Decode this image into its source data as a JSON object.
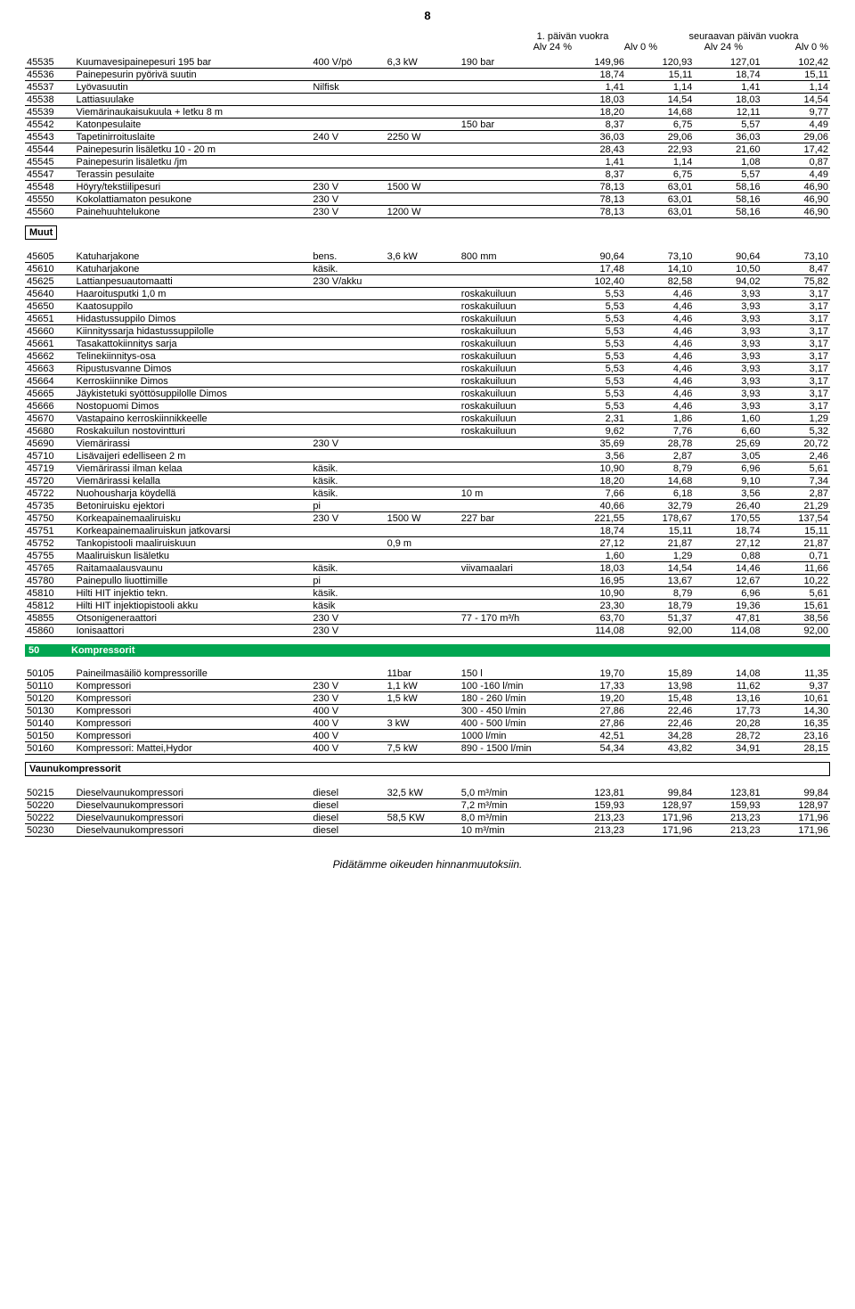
{
  "page_number": "8",
  "header": {
    "top_left": "1. päivän vuokra",
    "top_right": "seuraavan päivän vuokra",
    "cols": [
      "Alv 24 %",
      "Alv 0 %",
      "Alv 24 %",
      "Alv 0 %"
    ]
  },
  "group1": [
    {
      "code": "45535",
      "name": "Kuumavesipainepesuri 195 bar",
      "c3": "400 V/pö",
      "c4": "6,3 kW",
      "c5": "190 bar",
      "v": [
        "149,96",
        "120,93",
        "127,01",
        "102,42"
      ]
    },
    {
      "code": "45536",
      "name": "Painepesurin pyörivä suutin",
      "c3": "",
      "c4": "",
      "c5": "",
      "v": [
        "18,74",
        "15,11",
        "18,74",
        "15,11"
      ]
    },
    {
      "code": "45537",
      "name": "Lyövasuutin",
      "c3": "Nilfisk",
      "c4": "",
      "c5": "",
      "v": [
        "1,41",
        "1,14",
        "1,41",
        "1,14"
      ]
    },
    {
      "code": "45538",
      "name": "Lattiasuulake",
      "c3": "",
      "c4": "",
      "c5": "",
      "v": [
        "18,03",
        "14,54",
        "18,03",
        "14,54"
      ]
    },
    {
      "code": "45539",
      "name": "Viemärinaukaisukuula + letku 8 m",
      "c3": "",
      "c4": "",
      "c5": "",
      "v": [
        "18,20",
        "14,68",
        "12,11",
        "9,77"
      ]
    },
    {
      "code": "45542",
      "name": "Katonpesulaite",
      "c3": "",
      "c4": "",
      "c5": "150 bar",
      "v": [
        "8,37",
        "6,75",
        "5,57",
        "4,49"
      ]
    },
    {
      "code": "45543",
      "name": "Tapetinirroituslaite",
      "c3": "240 V",
      "c4": "2250 W",
      "c5": "",
      "v": [
        "36,03",
        "29,06",
        "36,03",
        "29,06"
      ]
    },
    {
      "code": "45544",
      "name": "Painepesurin lisäletku 10 - 20 m",
      "c3": "",
      "c4": "",
      "c5": "",
      "v": [
        "28,43",
        "22,93",
        "21,60",
        "17,42"
      ]
    },
    {
      "code": "45545",
      "name": "Painepesurin lisäletku /jm",
      "c3": "",
      "c4": "",
      "c5": "",
      "v": [
        "1,41",
        "1,14",
        "1,08",
        "0,87"
      ]
    },
    {
      "code": "45547",
      "name": "Terassin pesulaite",
      "c3": "",
      "c4": "",
      "c5": "",
      "v": [
        "8,37",
        "6,75",
        "5,57",
        "4,49"
      ]
    },
    {
      "code": "45548",
      "name": "Höyry/tekstiilipesuri",
      "c3": "230 V",
      "c4": "1500 W",
      "c5": "",
      "v": [
        "78,13",
        "63,01",
        "58,16",
        "46,90"
      ]
    },
    {
      "code": "45550",
      "name": "Kokolattiamaton pesukone",
      "c3": "230 V",
      "c4": "",
      "c5": "",
      "v": [
        "78,13",
        "63,01",
        "58,16",
        "46,90"
      ]
    },
    {
      "code": "45560",
      "name": "Painehuuhtelukone",
      "c3": "230 V",
      "c4": "1200 W",
      "c5": "",
      "v": [
        "78,13",
        "63,01",
        "58,16",
        "46,90"
      ]
    }
  ],
  "muut_label": "Muut",
  "muut": [
    {
      "code": "45605",
      "name": "Katuharjakone",
      "c3": "bens.",
      "c4": "3,6 kW",
      "c5": "800 mm",
      "v": [
        "90,64",
        "73,10",
        "90,64",
        "73,10"
      ]
    },
    {
      "code": "45610",
      "name": "Katuharjakone",
      "c3": "käsik.",
      "c4": "",
      "c5": "",
      "v": [
        "17,48",
        "14,10",
        "10,50",
        "8,47"
      ]
    },
    {
      "code": "45625",
      "name": "Lattianpesuautomaatti",
      "c3": "230 V/akku",
      "c4": "",
      "c5": "",
      "v": [
        "102,40",
        "82,58",
        "94,02",
        "75,82"
      ]
    },
    {
      "code": "45640",
      "name": "Haaroitusputki 1,0 m",
      "c3": "",
      "c4": "",
      "c5": "roskakuiluun",
      "v": [
        "5,53",
        "4,46",
        "3,93",
        "3,17"
      ]
    },
    {
      "code": "45650",
      "name": "Kaatosuppilo",
      "c3": "",
      "c4": "",
      "c5": "roskakuiluun",
      "v": [
        "5,53",
        "4,46",
        "3,93",
        "3,17"
      ]
    },
    {
      "code": "45651",
      "name": "Hidastussuppilo Dimos",
      "c3": "",
      "c4": "",
      "c5": "roskakuiluun",
      "v": [
        "5,53",
        "4,46",
        "3,93",
        "3,17"
      ]
    },
    {
      "code": "45660",
      "name": "Kiinnityssarja hidastussuppilolle",
      "c3": "",
      "c4": "",
      "c5": "roskakuiluun",
      "v": [
        "5,53",
        "4,46",
        "3,93",
        "3,17"
      ]
    },
    {
      "code": "45661",
      "name": "Tasakattokiinnitys sarja",
      "c3": "",
      "c4": "",
      "c5": "roskakuiluun",
      "v": [
        "5,53",
        "4,46",
        "3,93",
        "3,17"
      ]
    },
    {
      "code": "45662",
      "name": "Telinekiinnitys-osa",
      "c3": "",
      "c4": "",
      "c5": "roskakuiluun",
      "v": [
        "5,53",
        "4,46",
        "3,93",
        "3,17"
      ]
    },
    {
      "code": "45663",
      "name": "Ripustusvanne Dimos",
      "c3": "",
      "c4": "",
      "c5": "roskakuiluun",
      "v": [
        "5,53",
        "4,46",
        "3,93",
        "3,17"
      ]
    },
    {
      "code": "45664",
      "name": "Kerroskiinnike Dimos",
      "c3": "",
      "c4": "",
      "c5": "roskakuiluun",
      "v": [
        "5,53",
        "4,46",
        "3,93",
        "3,17"
      ]
    },
    {
      "code": "45665",
      "name": "Jäykistetuki syöttösuppilolle Dimos",
      "c3": "",
      "c4": "",
      "c5": "roskakuiluun",
      "v": [
        "5,53",
        "4,46",
        "3,93",
        "3,17"
      ]
    },
    {
      "code": "45666",
      "name": "Nostopuomi Dimos",
      "c3": "",
      "c4": "",
      "c5": "roskakuiluun",
      "v": [
        "5,53",
        "4,46",
        "3,93",
        "3,17"
      ]
    },
    {
      "code": "45670",
      "name": "Vastapaino kerroskiinnikkeelle",
      "c3": "",
      "c4": "",
      "c5": "roskakuiluun",
      "v": [
        "2,31",
        "1,86",
        "1,60",
        "1,29"
      ]
    },
    {
      "code": "45680",
      "name": "Roskakuilun nostovintturi",
      "c3": "",
      "c4": "",
      "c5": "roskakuiluun",
      "v": [
        "9,62",
        "7,76",
        "6,60",
        "5,32"
      ]
    },
    {
      "code": "45690",
      "name": "Viemärirassi",
      "c3": "230 V",
      "c4": "",
      "c5": "",
      "v": [
        "35,69",
        "28,78",
        "25,69",
        "20,72"
      ]
    },
    {
      "code": "45710",
      "name": "Lisävaijeri edelliseen 2 m",
      "c3": "",
      "c4": "",
      "c5": "",
      "v": [
        "3,56",
        "2,87",
        "3,05",
        "2,46"
      ]
    },
    {
      "code": "45719",
      "name": "Viemärirassi ilman kelaa",
      "c3": "käsik.",
      "c4": "",
      "c5": "",
      "v": [
        "10,90",
        "8,79",
        "6,96",
        "5,61"
      ]
    },
    {
      "code": "45720",
      "name": "Viemärirassi kelalla",
      "c3": "käsik.",
      "c4": "",
      "c5": "",
      "v": [
        "18,20",
        "14,68",
        "9,10",
        "7,34"
      ]
    },
    {
      "code": "45722",
      "name": "Nuohousharja köydellä",
      "c3": "käsik.",
      "c4": "",
      "c5": "10 m",
      "v": [
        "7,66",
        "6,18",
        "3,56",
        "2,87"
      ]
    },
    {
      "code": "45735",
      "name": "Betoniruisku ejektori",
      "c3": "pi",
      "c4": "",
      "c5": "",
      "v": [
        "40,66",
        "32,79",
        "26,40",
        "21,29"
      ]
    },
    {
      "code": "45750",
      "name": "Korkeapainemaaliruisku",
      "c3": "230 V",
      "c4": "1500 W",
      "c5": "227 bar",
      "v": [
        "221,55",
        "178,67",
        "170,55",
        "137,54"
      ]
    },
    {
      "code": "45751",
      "name": "Korkeapainemaaliruiskun jatkovarsi",
      "c3": "",
      "c4": "",
      "c5": "",
      "v": [
        "18,74",
        "15,11",
        "18,74",
        "15,11"
      ]
    },
    {
      "code": "45752",
      "name": "Tankopistooli maaliruiskuun",
      "c3": "",
      "c4": "0,9 m",
      "c5": "",
      "v": [
        "27,12",
        "21,87",
        "27,12",
        "21,87"
      ]
    },
    {
      "code": "45755",
      "name": "Maaliruiskun lisäletku",
      "c3": "",
      "c4": "",
      "c5": "",
      "v": [
        "1,60",
        "1,29",
        "0,88",
        "0,71"
      ]
    },
    {
      "code": "45765",
      "name": "Raitamaalausvaunu",
      "c3": "käsik.",
      "c4": "",
      "c5": "viivamaalari",
      "v": [
        "18,03",
        "14,54",
        "14,46",
        "11,66"
      ]
    },
    {
      "code": "45780",
      "name": "Painepullo liuottimille",
      "c3": "pi",
      "c4": "",
      "c5": "",
      "v": [
        "16,95",
        "13,67",
        "12,67",
        "10,22"
      ]
    },
    {
      "code": "45810",
      "name": "Hilti HIT injektio tekn.",
      "c3": "käsik.",
      "c4": "",
      "c5": "",
      "v": [
        "10,90",
        "8,79",
        "6,96",
        "5,61"
      ]
    },
    {
      "code": "45812",
      "name": "Hilti HIT injektiopistooli akku",
      "c3": "käsik",
      "c4": "",
      "c5": "",
      "v": [
        "23,30",
        "18,79",
        "19,36",
        "15,61"
      ]
    },
    {
      "code": "45855",
      "name": "Otsonigeneraattori",
      "c3": "230 V",
      "c4": "",
      "c5": "77 - 170 m³/h",
      "v": [
        "63,70",
        "51,37",
        "47,81",
        "38,56"
      ]
    },
    {
      "code": "45860",
      "name": "Ionisaattori",
      "c3": "230 V",
      "c4": "",
      "c5": "",
      "v": [
        "114,08",
        "92,00",
        "114,08",
        "92,00"
      ]
    }
  ],
  "kompressorit": {
    "code": "50",
    "name": "Kompressorit"
  },
  "komp": [
    {
      "code": "50105",
      "name": "Paineilmasäiliö kompressorille",
      "c3": "",
      "c4": "11bar",
      "c5": "150 l",
      "v": [
        "19,70",
        "15,89",
        "14,08",
        "11,35"
      ]
    },
    {
      "code": "50110",
      "name": "Kompressori",
      "c3": "230 V",
      "c4": "1,1 kW",
      "c5": "100 -160 l/min",
      "v": [
        "17,33",
        "13,98",
        "11,62",
        "9,37"
      ]
    },
    {
      "code": "50120",
      "name": "Kompressori",
      "c3": "230 V",
      "c4": "1,5 kW",
      "c5": "180 - 260 l/min",
      "v": [
        "19,20",
        "15,48",
        "13,16",
        "10,61"
      ]
    },
    {
      "code": "50130",
      "name": "Kompressori",
      "c3": "400 V",
      "c4": "",
      "c5": "300 - 450 l/min",
      "v": [
        "27,86",
        "22,46",
        "17,73",
        "14,30"
      ]
    },
    {
      "code": "50140",
      "name": "Kompressori",
      "c3": "400 V",
      "c4": "3 kW",
      "c5": "400 - 500 l/min",
      "v": [
        "27,86",
        "22,46",
        "20,28",
        "16,35"
      ]
    },
    {
      "code": "50150",
      "name": "Kompressori",
      "c3": "400 V",
      "c4": "",
      "c5": "1000 l/min",
      "v": [
        "42,51",
        "34,28",
        "28,72",
        "23,16"
      ]
    },
    {
      "code": "50160",
      "name": "Kompressori: Mattei,Hydor",
      "c3": "400 V",
      "c4": "7,5 kW",
      "c5": "890 - 1500 l/min",
      "v": [
        "54,34",
        "43,82",
        "34,91",
        "28,15"
      ]
    }
  ],
  "vaunuk_label": "Vaunukompressorit",
  "vaunuk": [
    {
      "code": "50215",
      "name": "Dieselvaunukompressori",
      "c3": "diesel",
      "c4": "32,5 kW",
      "c5": "5,0 m³/min",
      "v": [
        "123,81",
        "99,84",
        "123,81",
        "99,84"
      ]
    },
    {
      "code": "50220",
      "name": "Dieselvaunukompressori",
      "c3": "diesel",
      "c4": "",
      "c5": "7,2 m³/min",
      "v": [
        "159,93",
        "128,97",
        "159,93",
        "128,97"
      ]
    },
    {
      "code": "50222",
      "name": "Dieselvaunukompressori",
      "c3": "diesel",
      "c4": "58,5 KW",
      "c5": "8,0 m³/min",
      "v": [
        "213,23",
        "171,96",
        "213,23",
        "171,96"
      ]
    },
    {
      "code": "50230",
      "name": "Dieselvaunukompressori",
      "c3": "diesel",
      "c4": "",
      "c5": "10 m³/min",
      "v": [
        "213,23",
        "171,96",
        "213,23",
        "171,96"
      ]
    }
  ],
  "footer": "Pidätämme oikeuden hinnanmuutoksiin."
}
